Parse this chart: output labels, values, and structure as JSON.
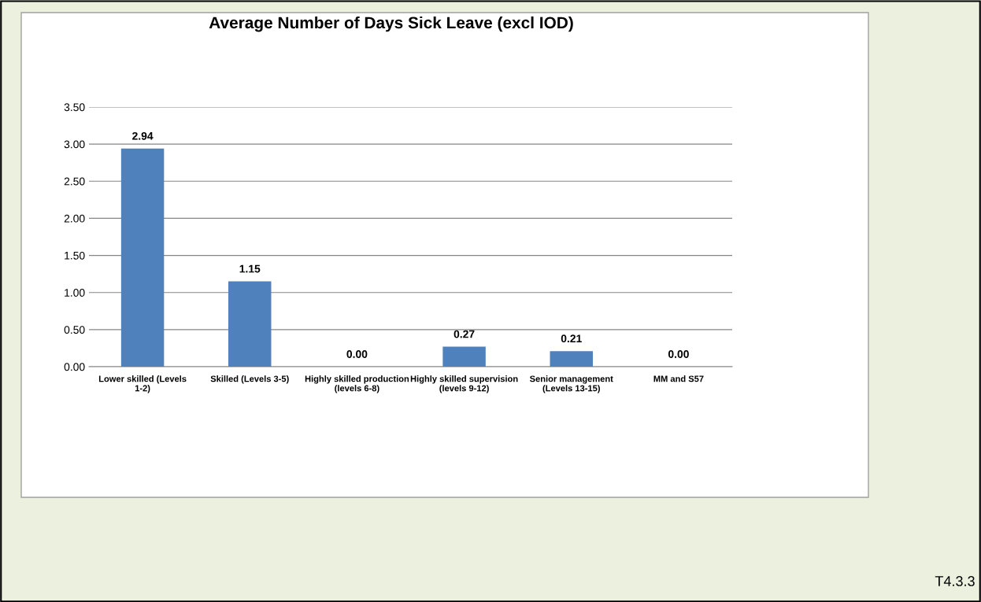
{
  "chart_data": {
    "type": "bar",
    "title": "Average Number of Days Sick Leave (excl IOD)",
    "categories": [
      "Lower skilled (Levels\n1-2)",
      "Skilled (Levels 3-5)",
      "Highly skilled production\n(levels 6-8)",
      "Highly skilled supervision\n(levels 9-12)",
      "Senior management\n(Levels 13-15)",
      "MM and S57"
    ],
    "values": [
      2.94,
      1.15,
      0.0,
      0.27,
      0.21,
      0.0
    ],
    "value_labels": [
      "2.94",
      "1.15",
      "0.00",
      "0.27",
      "0.21",
      "0.00"
    ],
    "color": "#4f81bd",
    "ylim": [
      0,
      3.5
    ],
    "yticks": [
      {
        "value": 0,
        "label": "0.00"
      },
      {
        "value": 0.5,
        "label": "0.50"
      },
      {
        "value": 1,
        "label": "1.00"
      },
      {
        "value": 1.5,
        "label": "1.50"
      },
      {
        "value": 2,
        "label": "2.00"
      },
      {
        "value": 2.5,
        "label": "2.50"
      },
      {
        "value": 3,
        "label": "3.00"
      },
      {
        "value": 3.5,
        "label": "3.50"
      }
    ],
    "grid": "y",
    "annotations": [
      "T4.3.3"
    ]
  }
}
